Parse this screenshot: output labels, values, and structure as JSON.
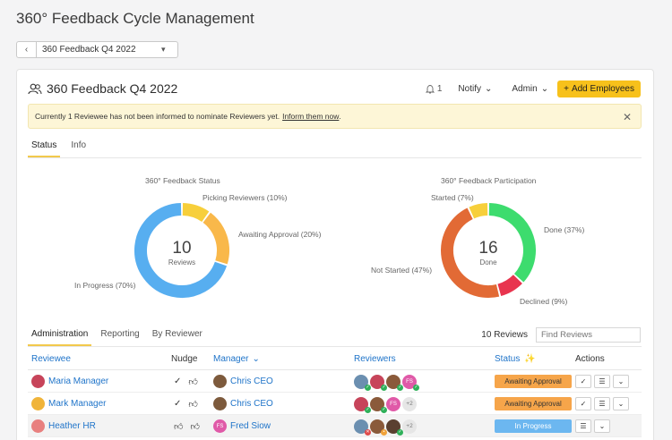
{
  "page_title": "360° Feedback Cycle Management",
  "cycle_selector": {
    "value": "360 Feedback Q4 2022"
  },
  "card": {
    "title": "360 Feedback Q4 2022",
    "bell_count": "1",
    "notify_label": "Notify",
    "admin_label": "Admin",
    "add_button": "Add Employees"
  },
  "banner": {
    "text": "Currently 1 Reviewee has not been informed to nominate Reviewers yet.",
    "link": "Inform them now",
    "after": "."
  },
  "tabs": [
    {
      "label": "Status"
    },
    {
      "label": "Info"
    }
  ],
  "status_chart": {
    "title": "360° Feedback Status",
    "center_number": "10",
    "center_label": "Reviews",
    "labels": [
      "Picking Reviewers (10%)",
      "Awaiting Approval (20%)",
      "In Progress (70%)"
    ]
  },
  "participation_chart": {
    "title": "360° Feedback Participation",
    "center_number": "16",
    "center_label": "Done",
    "labels": [
      "Started (7%)",
      "Done (37%)",
      "Not Started (47%)",
      "Declined (9%)"
    ]
  },
  "chart_data": [
    {
      "type": "pie",
      "title": "360° Feedback Status",
      "categories": [
        "Picking Reviewers",
        "Awaiting Approval",
        "In Progress"
      ],
      "values": [
        10,
        20,
        70
      ],
      "colors": [
        "#f7cf3b",
        "#f9b84a",
        "#57aef0"
      ]
    },
    {
      "type": "pie",
      "title": "360° Feedback Participation",
      "categories": [
        "Done",
        "Declined",
        "Not Started",
        "Started"
      ],
      "values": [
        37,
        9,
        47,
        7
      ],
      "colors": [
        "#3ddc6e",
        "#e8344e",
        "#e26a35",
        "#f7cf3b"
      ]
    }
  ],
  "table_tabs": [
    {
      "label": "Administration"
    },
    {
      "label": "Reporting"
    },
    {
      "label": "By Reviewer"
    }
  ],
  "reviews_count": "10 Reviews",
  "search_placeholder": "Find Reviews",
  "columns": {
    "reviewee": "Reviewee",
    "nudge": "Nudge",
    "manager": "Manager",
    "reviewers": "Reviewers",
    "status": "Status",
    "actions": "Actions"
  },
  "rows": [
    {
      "reviewee": "Maria Manager",
      "manager": "Chris CEO",
      "status": "Awaiting Approval",
      "more": "",
      "reviewer_initials": "FS"
    },
    {
      "reviewee": "Mark Manager",
      "manager": "Chris CEO",
      "status": "Awaiting Approval",
      "more": "+2",
      "reviewer_initials": "FS"
    },
    {
      "reviewee": "Heather HR",
      "manager": "Fred Siow",
      "manager_initials": "FS",
      "status": "In Progress",
      "more": "+2"
    }
  ],
  "colors": {
    "accent_yellow": "#f7c11b",
    "link_blue": "#1f74c9",
    "awaiting_badge": "#f6a54a",
    "progress_badge": "#6cb7f0"
  }
}
